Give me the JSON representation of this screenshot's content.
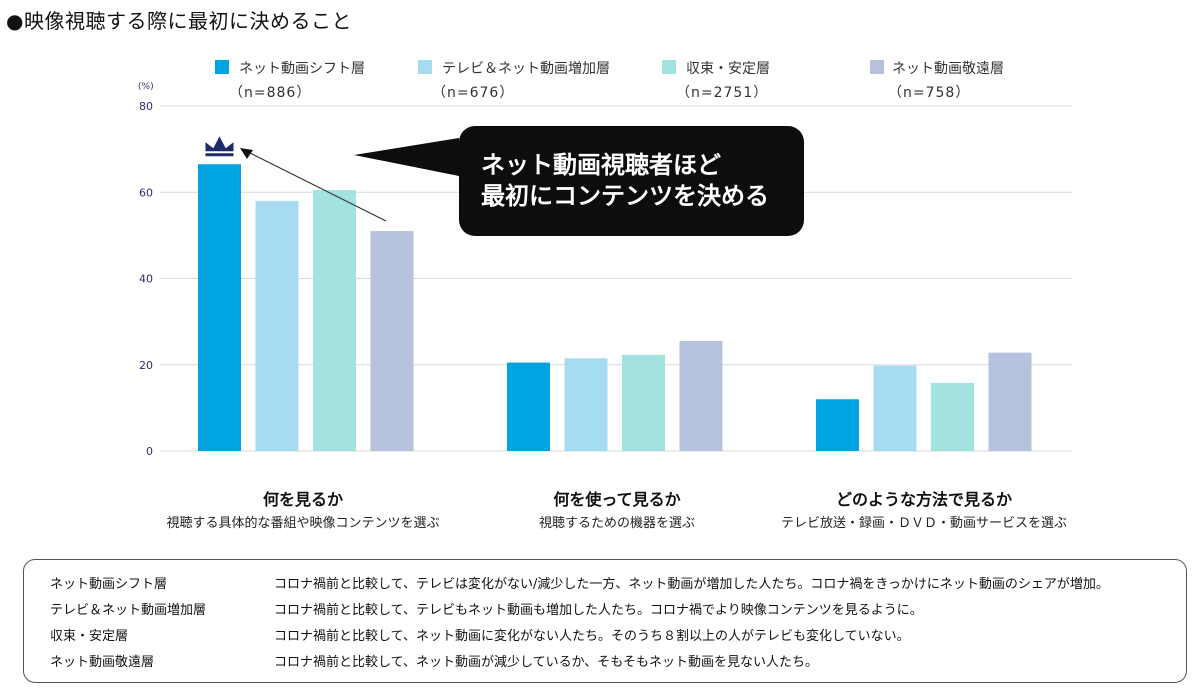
{
  "page": {
    "title": "●映像視聴する際に最初に決めること"
  },
  "chart_data": {
    "type": "bar",
    "y_unit": "(%)",
    "ylim": [
      0,
      80
    ],
    "yticks": [
      0,
      20,
      40,
      60,
      80
    ],
    "grid": true,
    "categories": [
      {
        "title": "何を見るか",
        "subtitle": "視聴する具体的な番組や映像コンテンツを選ぶ"
      },
      {
        "title": "何を使って見るか",
        "subtitle": "視聴するための機器を選ぶ"
      },
      {
        "title": "どのような方法で見るか",
        "subtitle": "テレビ放送・録画・ＤＶＤ・動画サービスを選ぶ"
      }
    ],
    "series": [
      {
        "name": "ネット動画シフト層",
        "n": "（n=886）",
        "color": "#00a4e0",
        "values": [
          66.5,
          20.5,
          12.0
        ]
      },
      {
        "name": "テレビ＆ネット動画増加層",
        "n": "（n=676）",
        "color": "#a6dcf2",
        "values": [
          58.0,
          21.5,
          19.8
        ]
      },
      {
        "name": "収束・安定層",
        "n": "（n=2751）",
        "color": "#a2e3e0",
        "values": [
          60.5,
          22.3,
          15.8
        ]
      },
      {
        "name": "ネット動画敬遠層",
        "n": "（n=758）",
        "color": "#b6c2dd",
        "values": [
          51.0,
          25.5,
          22.8
        ]
      }
    ],
    "legend_position": "top",
    "annotation": "ネット動画視聴者ほど\n最初にコンテンツを決める",
    "highlight_icon": "crown-icon",
    "highlight_color": "#1f2a6b"
  },
  "callout": {
    "line1": "ネット動画視聴者ほど",
    "line2": "最初にコンテンツを決める"
  },
  "descriptions": [
    {
      "name": "ネット動画シフト層",
      "text": "コロナ禍前と比較して、テレビは変化がない/減少した一方、ネット動画が増加した人たち。コロナ禍をきっかけにネット動画のシェアが増加。"
    },
    {
      "name": "テレビ＆ネット動画増加層",
      "text": "コロナ禍前と比較して、テレビもネット動画も増加した人たち。コロナ禍でより映像コンテンツを見るように。"
    },
    {
      "name": "収束・安定層",
      "text": "コロナ禍前と比較して、ネット動画に変化がない人たち。そのうち８割以上の人がテレビも変化していない。"
    },
    {
      "name": "ネット動画敬遠層",
      "text": "コロナ禍前と比較して、ネット動画が減少しているか、そもそもネット動画を見ない人たち。"
    }
  ]
}
